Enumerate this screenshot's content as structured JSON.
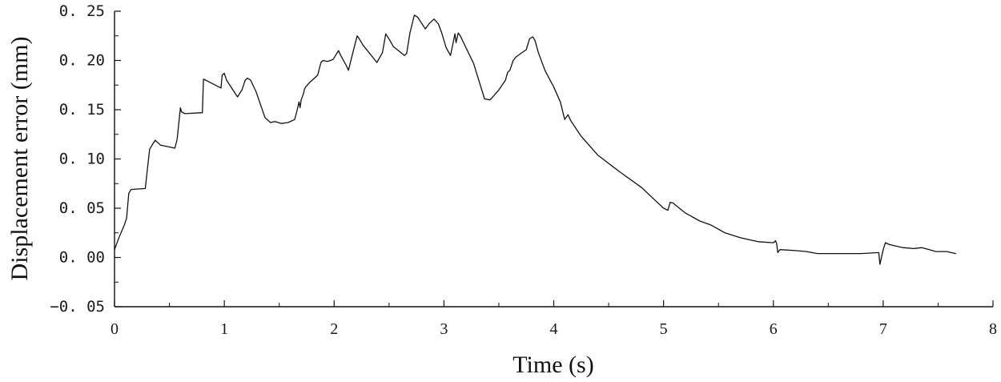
{
  "chart_data": {
    "type": "line",
    "xlabel": "Time (s)",
    "ylabel": "Displacement error (mm)",
    "xlim": [
      0,
      8
    ],
    "ylim": [
      -0.05,
      0.25
    ],
    "x_ticks": [
      0,
      1,
      2,
      3,
      4,
      5,
      6,
      7,
      8
    ],
    "x_tick_labels": [
      "0",
      "1",
      "2",
      "3",
      "4",
      "5",
      "6",
      "7",
      "8"
    ],
    "y_ticks": [
      -0.05,
      0,
      0.05,
      0.1,
      0.15,
      0.2,
      0.25
    ],
    "y_tick_labels": [
      "−0. 05",
      "0. 00",
      "0. 05",
      "0. 10",
      "0. 15",
      "0. 20",
      "0. 25"
    ],
    "grid": false,
    "legend": "none",
    "line_color": "#111111",
    "series": [
      {
        "x": [
          0,
          0.04,
          0.09,
          0.11,
          0.13,
          0.15,
          0.28,
          0.3,
          0.32,
          0.37,
          0.42,
          0.55,
          0.57,
          0.6,
          0.61,
          0.64,
          0.8,
          0.81,
          0.83,
          0.97,
          0.98,
          1.0,
          1.02,
          1.12,
          1.16,
          1.19,
          1.21,
          1.24,
          1.29,
          1.37,
          1.42,
          1.46,
          1.49,
          1.52,
          1.58,
          1.64,
          1.66,
          1.68,
          1.69,
          1.7,
          1.72,
          1.73,
          1.74,
          1.78,
          1.85,
          1.88,
          1.9,
          1.94,
          1.99,
          2.04,
          2.06,
          2.11,
          2.13,
          2.18,
          2.21,
          2.24,
          2.26,
          2.39,
          2.44,
          2.47,
          2.51,
          2.54,
          2.64,
          2.66,
          2.69,
          2.73,
          2.76,
          2.83,
          2.87,
          2.91,
          2.95,
          2.98,
          3.02,
          3.06,
          3.1,
          3.11,
          3.13,
          3.15,
          3.17,
          3.27,
          3.37,
          3.42,
          3.5,
          3.56,
          3.58,
          3.6,
          3.63,
          3.66,
          3.75,
          3.78,
          3.81,
          3.83,
          3.86,
          3.92,
          4.0,
          4.06,
          4.1,
          4.13,
          4.15,
          4.16,
          4.25,
          4.4,
          4.6,
          4.8,
          5.0,
          5.04,
          5.06,
          5.09,
          5.11,
          5.2,
          5.33,
          5.43,
          5.56,
          5.7,
          5.86,
          6.0,
          6.02,
          6.03,
          6.04,
          6.06,
          6.2,
          6.3,
          6.4,
          6.6,
          6.8,
          6.96,
          6.97,
          7.0,
          7.02,
          7.06,
          7.18,
          7.28,
          7.35,
          7.42,
          7.48,
          7.58,
          7.66
        ],
        "y": [
          0.008,
          0.02,
          0.033,
          0.04,
          0.065,
          0.069,
          0.07,
          0.09,
          0.11,
          0.119,
          0.114,
          0.111,
          0.12,
          0.152,
          0.148,
          0.146,
          0.147,
          0.181,
          0.18,
          0.172,
          0.185,
          0.187,
          0.18,
          0.163,
          0.17,
          0.18,
          0.182,
          0.18,
          0.168,
          0.142,
          0.137,
          0.138,
          0.137,
          0.136,
          0.137,
          0.14,
          0.148,
          0.158,
          0.152,
          0.16,
          0.166,
          0.171,
          0.173,
          0.178,
          0.185,
          0.198,
          0.2,
          0.199,
          0.201,
          0.21,
          0.205,
          0.195,
          0.19,
          0.212,
          0.225,
          0.22,
          0.216,
          0.198,
          0.208,
          0.227,
          0.22,
          0.214,
          0.205,
          0.207,
          0.228,
          0.246,
          0.244,
          0.232,
          0.238,
          0.242,
          0.237,
          0.228,
          0.213,
          0.205,
          0.227,
          0.218,
          0.228,
          0.225,
          0.22,
          0.197,
          0.161,
          0.16,
          0.17,
          0.18,
          0.188,
          0.19,
          0.2,
          0.204,
          0.211,
          0.222,
          0.224,
          0.22,
          0.208,
          0.19,
          0.173,
          0.158,
          0.14,
          0.145,
          0.14,
          0.138,
          0.123,
          0.104,
          0.087,
          0.071,
          0.05,
          0.048,
          0.056,
          0.055,
          0.053,
          0.045,
          0.037,
          0.033,
          0.025,
          0.02,
          0.016,
          0.015,
          0.017,
          0.014,
          0.005,
          0.008,
          0.007,
          0.006,
          0.004,
          0.004,
          0.004,
          0.005,
          -0.007,
          0.008,
          0.015,
          0.013,
          0.01,
          0.009,
          0.01,
          0.008,
          0.006,
          0.006,
          0.004
        ]
      }
    ]
  }
}
